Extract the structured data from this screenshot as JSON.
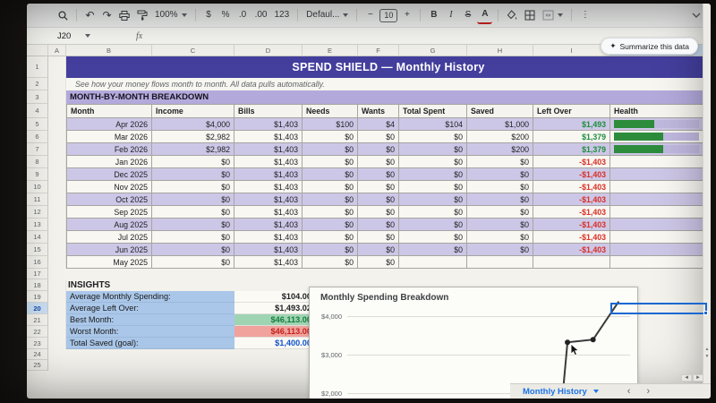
{
  "toolbar": {
    "zoom_value": "100%",
    "undo_glyph": "↶",
    "redo_glyph": "↷",
    "currency_label": "$",
    "percent_label": "%",
    "dec_decrease_label": ".0",
    "dec_increase_label": ".00",
    "more_formats_label": "123",
    "font_name": "Defaul...",
    "font_size_minus": "−",
    "font_size_value": "10",
    "font_size_plus": "+",
    "bold_label": "B",
    "italic_label": "I",
    "strikethrough_label": "S",
    "text_color_label": "A",
    "more_label": "⋮"
  },
  "formula_bar": {
    "name_box_value": "J20",
    "fx_label": "fx"
  },
  "summarize_button": {
    "icon": "✦",
    "label": "Summarize this data"
  },
  "sheet": {
    "columns": [
      "A",
      "B",
      "C",
      "D",
      "E",
      "F",
      "G",
      "H",
      "I",
      "J"
    ],
    "highlighted_column": "J",
    "highlighted_row": 20,
    "row_count": 25,
    "banner": {
      "num": 1,
      "text": "SPEND SHIELD — Monthly History"
    },
    "subtitle": {
      "num": 2,
      "text": "See how your money flows month to month. All data pulls automatically."
    },
    "section": {
      "num": 3,
      "text": "MONTH-BY-MONTH BREAKDOWN"
    },
    "table": {
      "header_num": 4,
      "headers": [
        "Month",
        "Income",
        "Bills",
        "Needs",
        "Wants",
        "Total Spent",
        "Saved",
        "Left Over",
        "Health"
      ],
      "rows": [
        {
          "num": 5,
          "month": "Apr 2026",
          "income": "$4,000",
          "bills": "$1,403",
          "needs": "$100",
          "wants": "$4",
          "total_spent": "$104",
          "saved": "$1,000",
          "left_over": "$1,493",
          "left_over_tone": "pos",
          "health_pct": 48
        },
        {
          "num": 6,
          "month": "Mar 2026",
          "income": "$2,982",
          "bills": "$1,403",
          "needs": "$0",
          "wants": "$0",
          "total_spent": "$0",
          "saved": "$200",
          "left_over": "$1,379",
          "left_over_tone": "pos",
          "health_pct": 58
        },
        {
          "num": 7,
          "month": "Feb 2026",
          "income": "$2,982",
          "bills": "$1,403",
          "needs": "$0",
          "wants": "$0",
          "total_spent": "$0",
          "saved": "$200",
          "left_over": "$1,379",
          "left_over_tone": "pos",
          "health_pct": 58
        },
        {
          "num": 8,
          "month": "Jan 2026",
          "income": "$0",
          "bills": "$1,403",
          "needs": "$0",
          "wants": "$0",
          "total_spent": "$0",
          "saved": "$0",
          "left_over": "-$1,403",
          "left_over_tone": "neg",
          "health_pct": 0
        },
        {
          "num": 9,
          "month": "Dec 2025",
          "income": "$0",
          "bills": "$1,403",
          "needs": "$0",
          "wants": "$0",
          "total_spent": "$0",
          "saved": "$0",
          "left_over": "-$1,403",
          "left_over_tone": "neg",
          "health_pct": 0
        },
        {
          "num": 10,
          "month": "Nov 2025",
          "income": "$0",
          "bills": "$1,403",
          "needs": "$0",
          "wants": "$0",
          "total_spent": "$0",
          "saved": "$0",
          "left_over": "-$1,403",
          "left_over_tone": "neg",
          "health_pct": 0
        },
        {
          "num": 11,
          "month": "Oct 2025",
          "income": "$0",
          "bills": "$1,403",
          "needs": "$0",
          "wants": "$0",
          "total_spent": "$0",
          "saved": "$0",
          "left_over": "-$1,403",
          "left_over_tone": "neg",
          "health_pct": 0
        },
        {
          "num": 12,
          "month": "Sep 2025",
          "income": "$0",
          "bills": "$1,403",
          "needs": "$0",
          "wants": "$0",
          "total_spent": "$0",
          "saved": "$0",
          "left_over": "-$1,403",
          "left_over_tone": "neg",
          "health_pct": 0
        },
        {
          "num": 13,
          "month": "Aug 2025",
          "income": "$0",
          "bills": "$1,403",
          "needs": "$0",
          "wants": "$0",
          "total_spent": "$0",
          "saved": "$0",
          "left_over": "-$1,403",
          "left_over_tone": "neg",
          "health_pct": 0
        },
        {
          "num": 14,
          "month": "Jul 2025",
          "income": "$0",
          "bills": "$1,403",
          "needs": "$0",
          "wants": "$0",
          "total_spent": "$0",
          "saved": "$0",
          "left_over": "-$1,403",
          "left_over_tone": "neg",
          "health_pct": 0
        },
        {
          "num": 15,
          "month": "Jun 2025",
          "income": "$0",
          "bills": "$1,403",
          "needs": "$0",
          "wants": "$0",
          "total_spent": "$0",
          "saved": "$0",
          "left_over": "-$1,403",
          "left_over_tone": "neg",
          "health_pct": 0
        },
        {
          "num": 16,
          "month": "May 2025",
          "income": "$0",
          "bills": "$1,403",
          "needs": "$0",
          "wants": "$0",
          "total_spent": "",
          "saved": "",
          "left_over": "",
          "left_over_tone": "",
          "health_pct": 0
        }
      ]
    },
    "insights": {
      "title": {
        "num": 18,
        "text": "INSIGHTS"
      },
      "rows": [
        {
          "num": 19,
          "label": "Average Monthly Spending:",
          "value": "$104.00",
          "tone": "plain"
        },
        {
          "num": 20,
          "label": "Average Left Over:",
          "value": "$1,493.02",
          "tone": "plain"
        },
        {
          "num": 21,
          "label": "Best Month:",
          "value": "$46,113.00",
          "tone": "green"
        },
        {
          "num": 22,
          "label": "Worst Month:",
          "value": "$46,113.00",
          "tone": "red"
        },
        {
          "num": 23,
          "label": "Total Saved (goal):",
          "value": "$1,400.00",
          "tone": "blue"
        }
      ]
    },
    "empty_rows": [
      17,
      24,
      25
    ]
  },
  "chart_data": {
    "type": "line",
    "title": "Monthly Spending Breakdown",
    "y_tick_labels": [
      "$4,000",
      "$3,000",
      "$2,000"
    ],
    "y_axis_range": [
      2000,
      4000
    ],
    "grid": true,
    "x_axis_labels_visible": false,
    "points": [
      {
        "x_frac": 0.76,
        "value": 1700,
        "marker": false
      },
      {
        "x_frac": 0.78,
        "value": 3320,
        "marker": true
      },
      {
        "x_frac": 0.87,
        "value": 3390,
        "marker": true
      },
      {
        "x_frac": 0.96,
        "value": 4380,
        "marker": false
      }
    ]
  },
  "tab_bar": {
    "active_tab": "Monthly History",
    "prev_glyph": "‹",
    "next_glyph": "›"
  },
  "scrollbars": {
    "up": "▲",
    "down": "▼",
    "left": "◄",
    "right": "►"
  },
  "colors": {
    "banner_purple": "#443f9d",
    "section_purple": "#b3aadb",
    "row_lavender": "#cdc7e7",
    "positive_green": "#1e8e3e",
    "negative_red": "#d93025",
    "health_bar_green": "#2d8c3c",
    "insight_label_blue": "#aac7e9",
    "best_bg_green": "#9fd4b3",
    "worst_bg_red": "#f0a29c",
    "saved_text_blue": "#1155cc",
    "selection_blue": "#1967d2",
    "tab_text_blue": "#1a73e8"
  }
}
